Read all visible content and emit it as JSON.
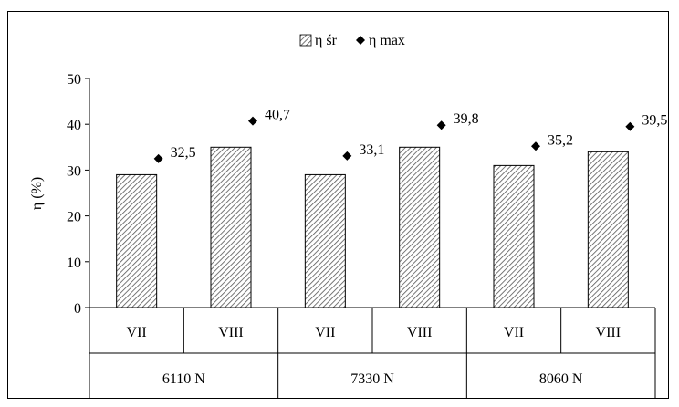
{
  "chart_data": {
    "type": "bar",
    "title": "",
    "xlabel": "",
    "ylabel": "η (%)",
    "ylim": [
      0,
      50
    ],
    "yticks": [
      "0",
      "10",
      "20",
      "30",
      "40",
      "50"
    ],
    "grid": false,
    "legend_position": "top",
    "categories": [
      "VII",
      "VIII",
      "VII",
      "VIII",
      "VII",
      "VIII"
    ],
    "groups": [
      "6110 N",
      "7330 N",
      "8060 N"
    ],
    "series": [
      {
        "name": "η śr",
        "kind": "bar",
        "pattern": "diagonal-hatch",
        "values": [
          29,
          35,
          29,
          35,
          31,
          34
        ]
      },
      {
        "name": "η max",
        "kind": "marker",
        "marker": "diamond",
        "values": [
          32.5,
          40.7,
          33.1,
          39.8,
          35.2,
          39.5
        ]
      }
    ],
    "data_labels": [
      "32,5",
      "40,7",
      "33,1",
      "39,8",
      "35,2",
      "39,5"
    ]
  },
  "legend": {
    "items": [
      "η śr",
      "η max"
    ]
  }
}
